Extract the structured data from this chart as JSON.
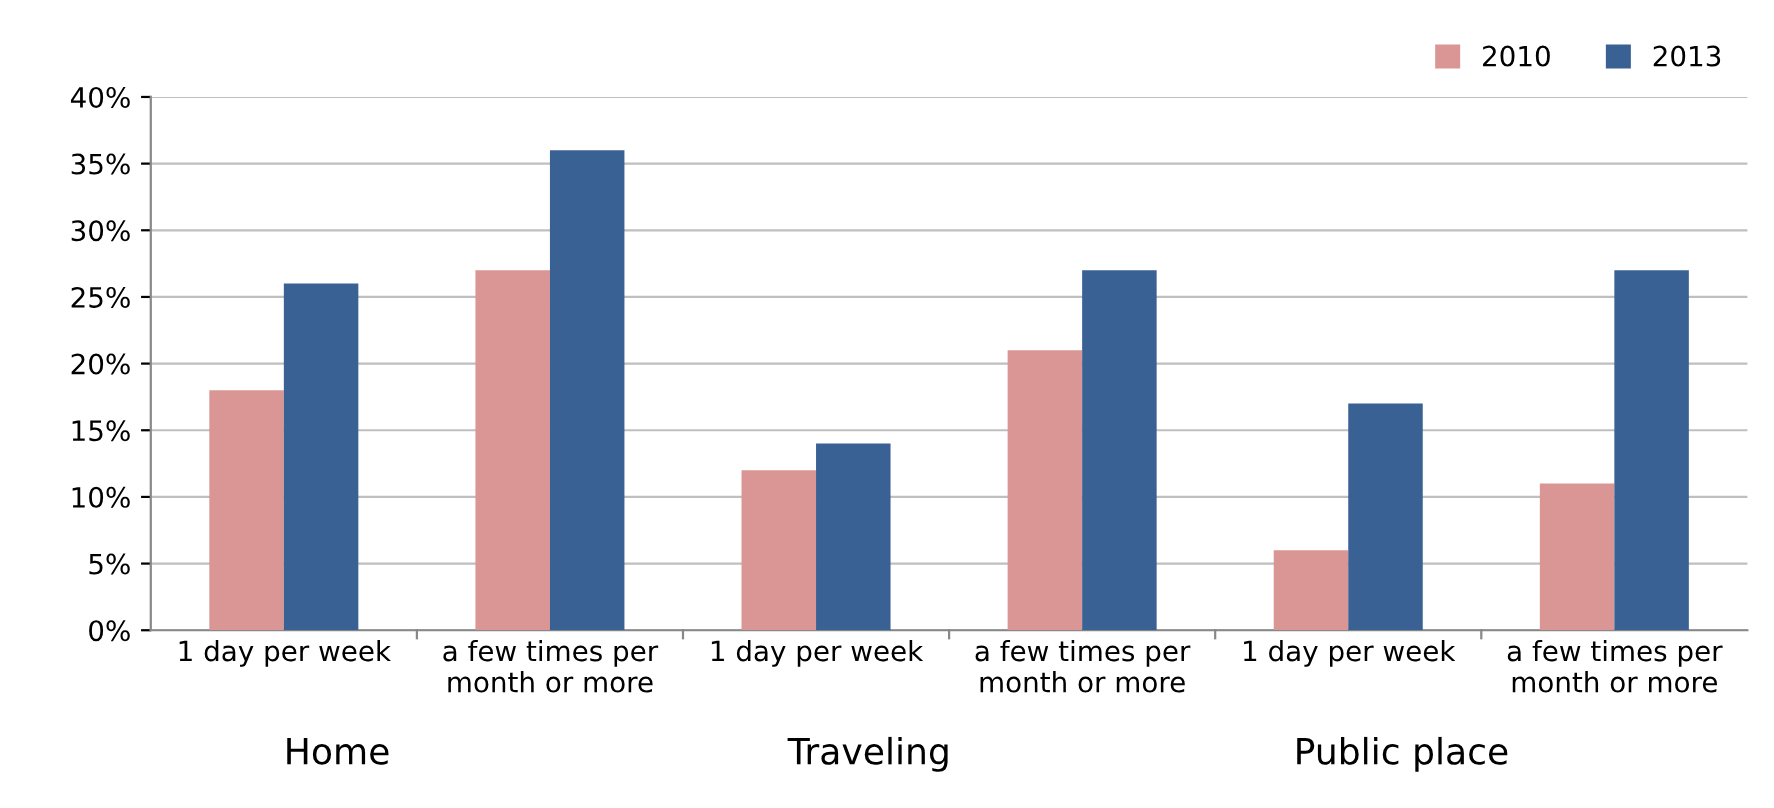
{
  "chart_data": {
    "type": "bar",
    "categories": [
      "1 day per week",
      "a few times per\nmonth or more",
      "1 day per week",
      "a few times per\nmonth or more",
      "1 day per week",
      "a few times per\nmonth or more"
    ],
    "series": [
      {
        "name": "2010",
        "color": "#d99694",
        "values": [
          18,
          27,
          12,
          21,
          6,
          11
        ]
      },
      {
        "name": "2013",
        "color": "#3a6193",
        "values": [
          26,
          36,
          14,
          27,
          17,
          27
        ]
      }
    ],
    "ylim": [
      0,
      40
    ],
    "yticks": [
      {
        "value": 0,
        "label": "0%"
      },
      {
        "value": 5,
        "label": "5%"
      },
      {
        "value": 10,
        "label": "10%"
      },
      {
        "value": 15,
        "label": "15%"
      },
      {
        "value": 20,
        "label": "20%"
      },
      {
        "value": 25,
        "label": "25%"
      },
      {
        "value": 30,
        "label": "30%"
      },
      {
        "value": 35,
        "label": "35%"
      },
      {
        "value": 40,
        "label": "40%"
      }
    ],
    "grid": "y",
    "legend": "top right",
    "annotations": [
      "Home",
      "Traveling",
      "Public place"
    ]
  }
}
